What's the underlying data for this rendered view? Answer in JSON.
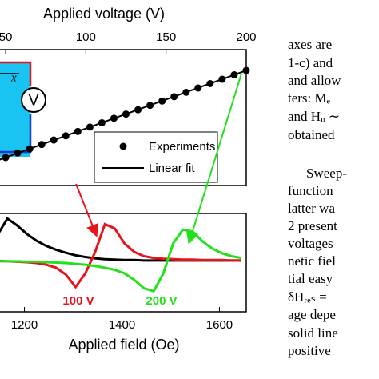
{
  "chart_data": [
    {
      "type": "scatter",
      "xlabel": "Applied voltage (V)",
      "xlim": [
        45,
        200
      ],
      "xticks": [
        50,
        100,
        150,
        200
      ],
      "ylim": [
        0,
        10
      ],
      "series": [
        {
          "name": "Experiments",
          "color": "#000000",
          "x": [
            50,
            57.5,
            65,
            72.5,
            80,
            87.5,
            95,
            102.5,
            110,
            117.5,
            125,
            132.5,
            140,
            147.5,
            155,
            162.5,
            170,
            177.5,
            185,
            192.5,
            200
          ],
          "values": [
            2.06,
            2.4,
            2.7,
            3.02,
            3.35,
            3.66,
            3.98,
            4.3,
            4.62,
            4.95,
            5.26,
            5.58,
            5.9,
            6.22,
            6.54,
            6.86,
            7.18,
            7.5,
            7.82,
            8.15,
            8.47
          ]
        },
        {
          "name": "Linear fit",
          "color": "#000000",
          "x": [
            45,
            200
          ],
          "values": [
            1.85,
            8.47
          ]
        }
      ],
      "inset_label": "x"
    },
    {
      "type": "line",
      "xlabel": "Applied field (Oe)",
      "xlim": [
        1145,
        1655
      ],
      "xticks": [
        1200,
        1400,
        1600
      ],
      "ylim": [
        -1.2,
        1.1
      ],
      "x": [
        1145,
        1165,
        1185,
        1205,
        1225,
        1245,
        1265,
        1285,
        1305,
        1325,
        1345,
        1365,
        1385,
        1405,
        1425,
        1445,
        1465,
        1485,
        1505,
        1525,
        1545,
        1565,
        1585,
        1605,
        1625,
        1645
      ],
      "series": [
        {
          "color": "#000000",
          "values": [
            0.6,
            0.98,
            0.82,
            0.62,
            0.46,
            0.34,
            0.25,
            0.18,
            0.12,
            0.08,
            0.05,
            0.03,
            0.02,
            0.01,
            0.01,
            0,
            0,
            0,
            0,
            0,
            0,
            0,
            0,
            0,
            0,
            0
          ]
        },
        {
          "name": "100 V",
          "color": "#e8141b",
          "values": [
            -0.01,
            -0.02,
            -0.03,
            -0.04,
            -0.06,
            -0.1,
            -0.17,
            -0.33,
            -0.62,
            -0.3,
            0.2,
            0.85,
            0.75,
            0.4,
            0.2,
            0.1,
            0.06,
            0.04,
            0.03,
            0.02,
            0.02,
            0.01,
            0.01,
            0.01,
            0,
            0
          ]
        },
        {
          "name": "200 V",
          "color": "#22e01a",
          "values": [
            -0.02,
            -0.02,
            -0.02,
            -0.03,
            -0.03,
            -0.04,
            -0.05,
            -0.06,
            -0.08,
            -0.1,
            -0.13,
            -0.17,
            -0.22,
            -0.3,
            -0.45,
            -0.65,
            -0.72,
            -0.3,
            0.4,
            0.72,
            0.68,
            0.45,
            0.28,
            0.17,
            0.1,
            0.06
          ]
        }
      ]
    }
  ],
  "text": [
    "axes are",
    "1-c) and",
    "and allow",
    "ters: Mₑ",
    "and Hᵤ ∼",
    "obtained",
    "Sweep-",
    "function",
    "latter wa",
    "2 present",
    "voltages",
    "netic fiel",
    "tial easy",
    "δHᵣₑₛ =",
    "age depe",
    "solid line",
    "positive"
  ]
}
